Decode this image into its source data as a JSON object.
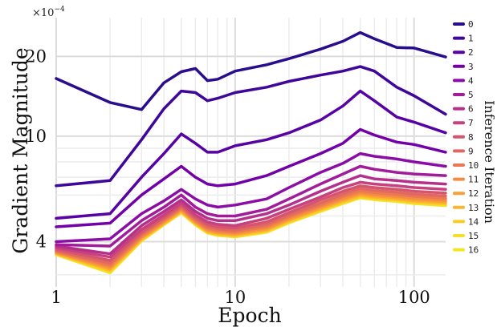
{
  "chart_data": {
    "type": "line",
    "title": "",
    "xlabel": "Epoch",
    "ylabel": "Gradient Magnitude",
    "y_scale_note": "×10⁻⁴",
    "x_scale": "log",
    "y_scale": "log",
    "xlim": [
      1,
      150
    ],
    "ylim": [
      2.7,
      28
    ],
    "x_ticks": [
      1,
      10,
      100
    ],
    "x_tick_labels": [
      "1",
      "10",
      "100"
    ],
    "y_ticks": [
      4,
      10,
      20
    ],
    "y_tick_labels": [
      "4",
      "10",
      "20"
    ],
    "grid": true,
    "legend": {
      "title": "Inference Iteration",
      "position": "right"
    },
    "x": [
      1,
      2,
      3,
      4,
      5,
      6,
      7,
      8,
      10,
      15,
      20,
      30,
      40,
      50,
      60,
      80,
      100,
      150
    ],
    "series": [
      {
        "name": "0",
        "color": "#2a0d8c",
        "values": [
          16.5,
          13.4,
          12.6,
          15.9,
          17.5,
          18.0,
          16.2,
          16.4,
          17.6,
          18.6,
          19.6,
          21.3,
          22.8,
          24.6,
          23.3,
          21.6,
          21.5,
          19.9
        ]
      },
      {
        "name": "1",
        "color": "#3e079a",
        "values": [
          6.5,
          6.8,
          9.7,
          12.7,
          14.8,
          14.6,
          13.6,
          13.9,
          14.6,
          15.3,
          16.1,
          17.0,
          17.6,
          18.3,
          17.6,
          15.3,
          14.2,
          12.1
        ]
      },
      {
        "name": "2",
        "color": "#5602a4",
        "values": [
          4.9,
          5.1,
          7.0,
          8.6,
          10.2,
          9.4,
          8.7,
          8.7,
          9.2,
          9.7,
          10.3,
          11.5,
          13.0,
          14.8,
          13.6,
          11.8,
          11.3,
          10.3
        ]
      },
      {
        "name": "3",
        "color": "#7201a8",
        "values": [
          4.55,
          4.7,
          6.0,
          6.9,
          7.7,
          7.0,
          6.6,
          6.5,
          6.6,
          7.1,
          7.7,
          8.6,
          9.4,
          10.6,
          10.1,
          9.5,
          9.3,
          8.7
        ]
      },
      {
        "name": "4",
        "color": "#8a0da5",
        "values": [
          4.0,
          4.1,
          5.1,
          5.7,
          6.3,
          5.8,
          5.5,
          5.4,
          5.5,
          5.8,
          6.4,
          7.3,
          7.9,
          8.6,
          8.4,
          8.2,
          8.0,
          7.7
        ]
      },
      {
        "name": "5",
        "color": "#a11b9b",
        "values": [
          3.9,
          3.85,
          4.8,
          5.4,
          6.0,
          5.4,
          5.1,
          5.0,
          5.0,
          5.3,
          5.8,
          6.6,
          7.2,
          7.7,
          7.5,
          7.3,
          7.2,
          7.1
        ]
      },
      {
        "name": "6",
        "color": "#b52f8c",
        "values": [
          3.85,
          3.6,
          4.6,
          5.2,
          5.75,
          5.2,
          4.9,
          4.8,
          4.8,
          5.1,
          5.5,
          6.2,
          6.7,
          7.1,
          6.9,
          6.8,
          6.7,
          6.6
        ]
      },
      {
        "name": "7",
        "color": "#c6417d",
        "values": [
          3.8,
          3.5,
          4.45,
          5.05,
          5.6,
          5.05,
          4.75,
          4.65,
          4.6,
          4.9,
          5.3,
          5.9,
          6.4,
          6.7,
          6.6,
          6.5,
          6.4,
          6.3
        ]
      },
      {
        "name": "8",
        "color": "#d5546e",
        "values": [
          3.75,
          3.4,
          4.35,
          4.95,
          5.5,
          4.95,
          4.65,
          4.55,
          4.5,
          4.75,
          5.15,
          5.75,
          6.2,
          6.5,
          6.4,
          6.3,
          6.2,
          6.1
        ]
      },
      {
        "name": "9",
        "color": "#e16762",
        "values": [
          3.7,
          3.32,
          4.28,
          4.88,
          5.42,
          4.88,
          4.57,
          4.47,
          4.42,
          4.65,
          5.05,
          5.6,
          6.05,
          6.35,
          6.25,
          6.15,
          6.05,
          5.95
        ]
      },
      {
        "name": "10",
        "color": "#ec7853",
        "values": [
          3.68,
          3.26,
          4.22,
          4.82,
          5.36,
          4.82,
          4.5,
          4.41,
          4.36,
          4.57,
          4.97,
          5.5,
          5.93,
          6.22,
          6.12,
          6.03,
          5.93,
          5.83
        ]
      },
      {
        "name": "11",
        "color": "#f48c43",
        "values": [
          3.65,
          3.21,
          4.17,
          4.77,
          5.3,
          4.77,
          4.45,
          4.36,
          4.31,
          4.51,
          4.9,
          5.42,
          5.83,
          6.12,
          6.02,
          5.93,
          5.83,
          5.73
        ]
      },
      {
        "name": "12",
        "color": "#f9a036",
        "values": [
          3.63,
          3.17,
          4.13,
          4.73,
          5.26,
          4.73,
          4.41,
          4.32,
          4.27,
          4.46,
          4.85,
          5.36,
          5.76,
          6.04,
          5.95,
          5.86,
          5.76,
          5.66
        ]
      },
      {
        "name": "13",
        "color": "#fdb42f",
        "values": [
          3.61,
          3.14,
          4.1,
          4.7,
          5.22,
          4.7,
          4.38,
          4.29,
          4.24,
          4.42,
          4.81,
          5.31,
          5.7,
          5.98,
          5.89,
          5.8,
          5.7,
          5.6
        ]
      },
      {
        "name": "14",
        "color": "#fcc926",
        "values": [
          3.6,
          3.11,
          4.07,
          4.67,
          5.19,
          4.67,
          4.35,
          4.26,
          4.21,
          4.39,
          4.77,
          5.27,
          5.65,
          5.93,
          5.84,
          5.75,
          5.65,
          5.55
        ]
      },
      {
        "name": "15",
        "color": "#f6dd26",
        "values": [
          3.58,
          3.08,
          4.05,
          4.65,
          5.16,
          4.65,
          4.33,
          4.24,
          4.19,
          4.36,
          4.74,
          5.23,
          5.61,
          5.89,
          5.8,
          5.71,
          5.61,
          5.51
        ]
      },
      {
        "name": "16",
        "color": "#f0e624",
        "values": [
          3.57,
          3.05,
          4.03,
          4.63,
          5.14,
          4.63,
          4.31,
          4.22,
          4.17,
          4.34,
          4.71,
          5.2,
          5.57,
          5.85,
          5.76,
          5.67,
          5.57,
          5.47
        ]
      }
    ]
  }
}
